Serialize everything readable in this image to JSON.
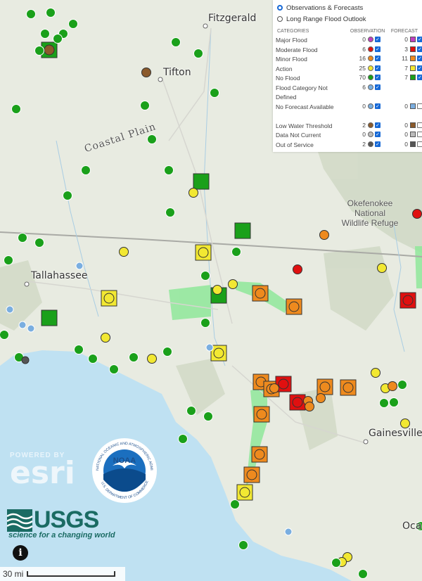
{
  "map": {
    "cities": [
      "Fitzgerald",
      "Tifton",
      "Tallahassee",
      "Gainesville",
      "Oca"
    ],
    "region_label": "Coastal Plain",
    "refuge_label": [
      "Okefenokee",
      "National",
      "Wildlife Refuge"
    ],
    "scale_label": "30 mi",
    "colors": {
      "major": "#c040c0",
      "moderate": "#e01010",
      "minor": "#ee8a1e",
      "action": "#f2e832",
      "no_flood": "#1aa01a",
      "not_defined": "#7aaee0",
      "low_water": "#8b5a2b",
      "not_current": "#bbbbbb",
      "out_of_service": "#555555",
      "water": "#bfe1f2",
      "flood_zone": "#8fe89a"
    }
  },
  "legend": {
    "modes": [
      {
        "label": "Observations & Forecasts",
        "selected": true
      },
      {
        "label": "Long Range Flood Outlook",
        "selected": false
      }
    ],
    "headers": {
      "categories": "CATEGORIES",
      "observation": "OBSERVATION",
      "forecast": "FORECAST"
    },
    "rows": [
      {
        "label": "Major Flood",
        "obs": "0",
        "fc": "0",
        "color": "#c040c0",
        "obs_on": true,
        "fc_on": true
      },
      {
        "label": "Moderate Flood",
        "obs": "6",
        "fc": "3",
        "color": "#e01010",
        "obs_on": true,
        "fc_on": true
      },
      {
        "label": "Minor Flood",
        "obs": "16",
        "fc": "11",
        "color": "#ee8a1e",
        "obs_on": true,
        "fc_on": true
      },
      {
        "label": "Action",
        "obs": "25",
        "fc": "7",
        "color": "#f2e832",
        "obs_on": true,
        "fc_on": true
      },
      {
        "label": "No Flood",
        "obs": "70",
        "fc": "7",
        "color": "#1aa01a",
        "obs_on": true,
        "fc_on": true
      },
      {
        "label": "Flood Category Not Defined",
        "obs": "6",
        "fc": "",
        "color": "#7aaee0",
        "obs_on": true,
        "fc_on": null
      },
      {
        "label": "No Forecast Available",
        "obs": "0",
        "fc": "0",
        "color": "#7aaee0",
        "obs_on": true,
        "fc_on": false
      },
      {
        "label": "Low Water Threshold",
        "obs": "2",
        "fc": "0",
        "color": "#8b5a2b",
        "obs_on": true,
        "fc_on": false
      },
      {
        "label": "Data Not Current",
        "obs": "0",
        "fc": "0",
        "color": "#bbbbbb",
        "obs_on": true,
        "fc_on": false
      },
      {
        "label": "Out of Service",
        "obs": "2",
        "fc": "0",
        "color": "#555555",
        "obs_on": true,
        "fc_on": false
      }
    ]
  },
  "logos": {
    "esri_powered": "POWERED BY",
    "esri_name": "esri",
    "noaa_name": "NOAA",
    "noaa_ring_top": "NATIONAL OCEANIC AND ATMOSPHERIC ADMINISTRATION",
    "noaa_ring_bottom": "U.S. DEPARTMENT OF COMMERCE",
    "usgs_name": "USGS",
    "usgs_tagline": "science for a changing world"
  },
  "controls": {
    "info_label": "i"
  }
}
